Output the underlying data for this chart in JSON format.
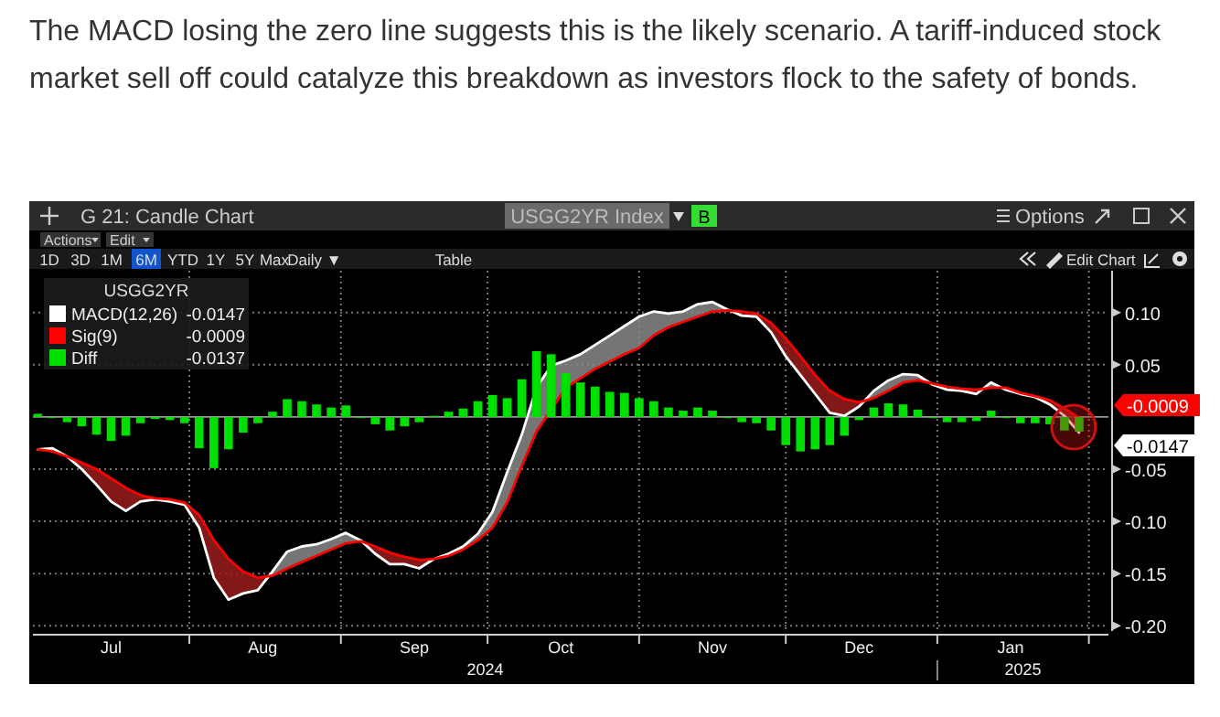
{
  "chart_data": {
    "type": "line",
    "title": "The MACD losing the zero line suggests this is the likely scenario. A tariff-induced stock market sell off could catalyze this breakdown as investors flock to the safety of bonds.",
    "legend_title": "USGG2YR",
    "legend": "top left",
    "marker": "none",
    "grid": true,
    "x": [
      "2024-07-01",
      "2024-07-04",
      "2024-07-07",
      "2024-07-10",
      "2024-07-13",
      "2024-07-16",
      "2024-07-19",
      "2024-07-22",
      "2024-07-25",
      "2024-07-28",
      "2024-07-31",
      "2024-08-03",
      "2024-08-06",
      "2024-08-09",
      "2024-08-12",
      "2024-08-15",
      "2024-08-18",
      "2024-08-21",
      "2024-08-24",
      "2024-08-27",
      "2024-08-30",
      "2024-09-02",
      "2024-09-05",
      "2024-09-08",
      "2024-09-11",
      "2024-09-14",
      "2024-09-17",
      "2024-09-20",
      "2024-09-23",
      "2024-09-26",
      "2024-09-29",
      "2024-10-02",
      "2024-10-05",
      "2024-10-08",
      "2024-10-11",
      "2024-10-14",
      "2024-10-17",
      "2024-10-20",
      "2024-10-23",
      "2024-10-26",
      "2024-10-29",
      "2024-11-01",
      "2024-11-04",
      "2024-11-07",
      "2024-11-10",
      "2024-11-13",
      "2024-11-16",
      "2024-11-19",
      "2024-11-22",
      "2024-11-25",
      "2024-11-28",
      "2024-12-01",
      "2024-12-04",
      "2024-12-07",
      "2024-12-10",
      "2024-12-13",
      "2024-12-16",
      "2024-12-19",
      "2024-12-22",
      "2024-12-25",
      "2024-12-28",
      "2024-12-31",
      "2025-01-03",
      "2025-01-06",
      "2025-01-09",
      "2025-01-12",
      "2025-01-15",
      "2025-01-18",
      "2025-01-21",
      "2025-01-24",
      "2025-01-27",
      "2025-01-30"
    ],
    "xlim": [
      "2024-06-30",
      "2025-02-05"
    ],
    "xticks": [
      {
        "value": "2024-07-16",
        "label": "Jul"
      },
      {
        "value": "2024-08-01",
        "label": null
      },
      {
        "value": "2024-08-16",
        "label": "Aug"
      },
      {
        "value": "2024-09-01",
        "label": null
      },
      {
        "value": "2024-09-16",
        "label": "Sep"
      },
      {
        "value": "2024-10-01",
        "label": null
      },
      {
        "value": "2024-10-16",
        "label": "Oct"
      },
      {
        "value": "2024-11-01",
        "label": null
      },
      {
        "value": "2024-11-16",
        "label": "Nov"
      },
      {
        "value": "2024-12-01",
        "label": null
      },
      {
        "value": "2024-12-16",
        "label": "Dec"
      },
      {
        "value": "2025-01-01",
        "label": null
      },
      {
        "value": "2025-01-16",
        "label": "Jan"
      },
      {
        "value": "2025-02-01",
        "label": null
      }
    ],
    "ylim": [
      -0.205,
      0.14
    ],
    "yticks": [
      {
        "value": 0.1,
        "label": "0.10"
      },
      {
        "value": 0.05,
        "label": "0.05"
      },
      {
        "value": -0.05,
        "label": "-0.05"
      },
      {
        "value": -0.1,
        "label": "-0.10"
      },
      {
        "value": -0.15,
        "label": "-0.15"
      },
      {
        "value": -0.2,
        "label": "-0.20"
      }
    ],
    "series": [
      {
        "name": "MACD(12,26)",
        "color": "#ffffff",
        "values": [
          -0.031,
          -0.03,
          -0.038,
          -0.05,
          -0.065,
          -0.081,
          -0.09,
          -0.081,
          -0.079,
          -0.081,
          -0.084,
          -0.106,
          -0.154,
          -0.175,
          -0.169,
          -0.166,
          -0.148,
          -0.129,
          -0.124,
          -0.122,
          -0.117,
          -0.111,
          -0.118,
          -0.131,
          -0.141,
          -0.141,
          -0.145,
          -0.136,
          -0.131,
          -0.124,
          -0.112,
          -0.091,
          -0.053,
          -0.017,
          0.028,
          0.049,
          0.054,
          0.06,
          0.069,
          0.078,
          0.087,
          0.096,
          0.101,
          0.099,
          0.101,
          0.108,
          0.11,
          0.103,
          0.097,
          0.096,
          0.081,
          0.058,
          0.04,
          0.022,
          0.004,
          0.001,
          0.01,
          0.025,
          0.035,
          0.041,
          0.04,
          0.031,
          0.026,
          0.025,
          0.022,
          0.033,
          0.026,
          0.022,
          0.019,
          0.012,
          0.001,
          -0.015
        ]
      },
      {
        "name": "Sig(9)",
        "color": "#ff0000",
        "values": [
          -0.031,
          -0.033,
          -0.038,
          -0.044,
          -0.05,
          -0.059,
          -0.068,
          -0.075,
          -0.078,
          -0.079,
          -0.082,
          -0.094,
          -0.118,
          -0.136,
          -0.148,
          -0.154,
          -0.152,
          -0.145,
          -0.139,
          -0.133,
          -0.127,
          -0.121,
          -0.119,
          -0.124,
          -0.13,
          -0.134,
          -0.137,
          -0.136,
          -0.133,
          -0.127,
          -0.118,
          -0.106,
          -0.082,
          -0.047,
          -0.014,
          0.007,
          0.028,
          0.037,
          0.046,
          0.053,
          0.06,
          0.066,
          0.078,
          0.086,
          0.091,
          0.096,
          0.101,
          0.102,
          0.101,
          0.099,
          0.09,
          0.075,
          0.058,
          0.04,
          0.025,
          0.017,
          0.014,
          0.018,
          0.025,
          0.033,
          0.035,
          0.032,
          0.029,
          0.027,
          0.026,
          0.028,
          0.028,
          0.023,
          0.02,
          0.016,
          0.008,
          -0.001
        ]
      },
      {
        "name": "Diff",
        "type": "bar",
        "color": "#00e000",
        "values": [
          0.003,
          -0.001,
          -0.005,
          -0.009,
          -0.017,
          -0.023,
          -0.018,
          -0.006,
          -0.002,
          -0.003,
          -0.006,
          -0.03,
          -0.049,
          -0.031,
          -0.015,
          -0.006,
          0.005,
          0.017,
          0.015,
          0.012,
          0.009,
          0.011,
          0,
          -0.007,
          -0.013,
          -0.009,
          -0.005,
          0.001,
          0.005,
          0.008,
          0.015,
          0.021,
          0.018,
          0.036,
          0.063,
          0.06,
          0.042,
          0.033,
          0.029,
          0.024,
          0.023,
          0.018,
          0.015,
          0.009,
          0.006,
          0.009,
          0.006,
          -0.001,
          -0.005,
          -0.006,
          -0.013,
          -0.027,
          -0.033,
          -0.031,
          -0.027,
          -0.018,
          -0.003,
          0.009,
          0.013,
          0.012,
          0.007,
          -0.001,
          -0.005,
          -0.005,
          -0.004,
          0.006,
          -0.001,
          -0.006,
          -0.006,
          -0.007,
          -0.013,
          -0.014
        ]
      }
    ],
    "annotations": [
      "G 21: Candle Chart",
      "USGG2YR Index",
      "B",
      "Options",
      "Actions",
      "Edit",
      "1D",
      "3D",
      "1M",
      "6M",
      "YTD",
      "1Y",
      "5Y",
      "Max",
      "Daily ▼",
      "Table",
      "Edit Chart",
      "-0.0147",
      "-0.0009",
      "-0.0137",
      "-0.0009",
      "-0.0147",
      "2024",
      "2025"
    ]
  }
}
